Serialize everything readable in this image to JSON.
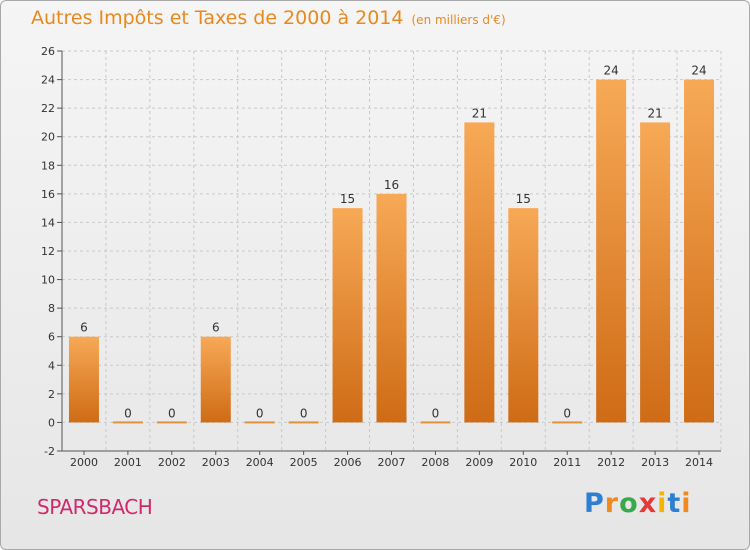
{
  "header": {
    "title": "Autres Impôts et Taxes de 2000 à 2014",
    "unit": "(en milliers d'€)"
  },
  "footer": {
    "place": "SPARSBACH",
    "logo_letters": [
      "P",
      "r",
      "o",
      "x",
      "i",
      "t",
      "i"
    ]
  },
  "colors": {
    "title": "#e8891f",
    "bar_top": "#f7a956",
    "bar_bottom": "#cf6b16",
    "place": "#cf2a6b"
  },
  "chart_data": {
    "type": "bar",
    "title": "Autres Impôts et Taxes de 2000 à 2014",
    "subtitle": "(en milliers d'€)",
    "xlabel": "",
    "ylabel": "",
    "categories": [
      "2000",
      "2001",
      "2002",
      "2003",
      "2004",
      "2005",
      "2006",
      "2007",
      "2008",
      "2009",
      "2010",
      "2011",
      "2012",
      "2013",
      "2014"
    ],
    "values": [
      6,
      0,
      0,
      6,
      0,
      0,
      15,
      16,
      0,
      21,
      15,
      0,
      24,
      21,
      24
    ],
    "ylim": [
      -2,
      26
    ],
    "yticks": [
      -2,
      0,
      2,
      4,
      6,
      8,
      10,
      12,
      14,
      16,
      18,
      20,
      22,
      24,
      26
    ],
    "grid": true
  }
}
